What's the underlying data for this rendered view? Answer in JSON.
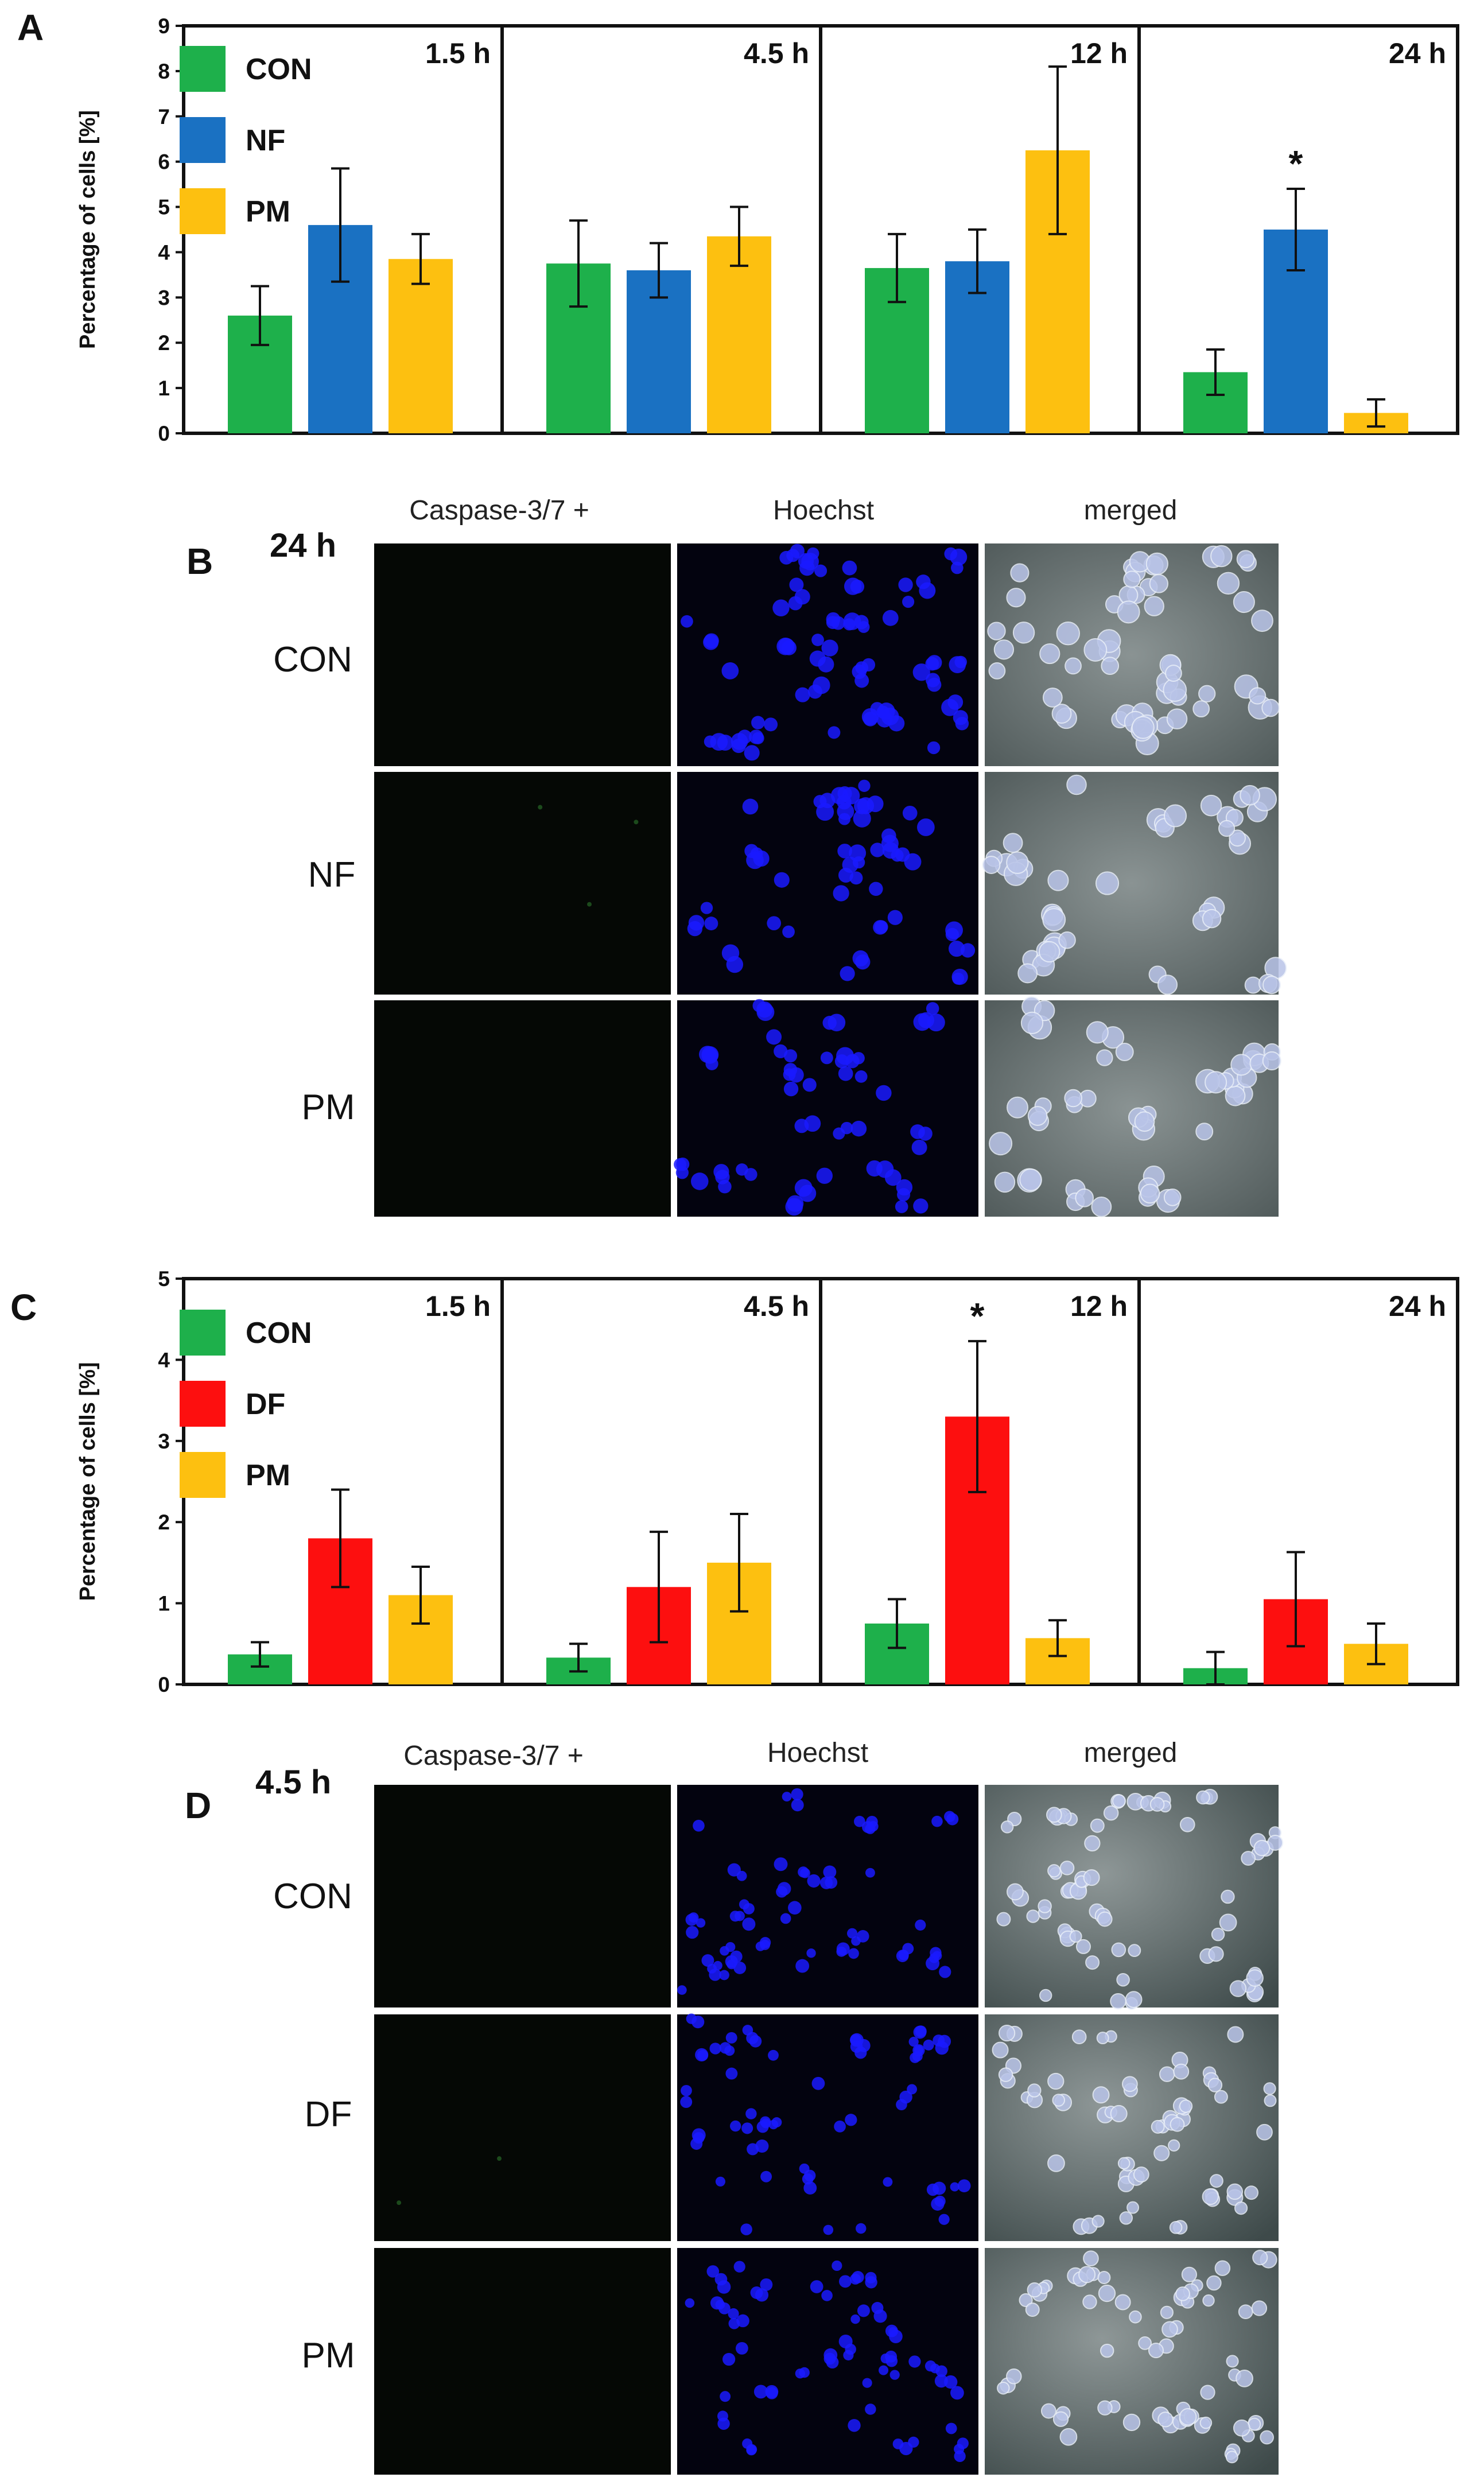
{
  "chart_data": [
    {
      "panel": "A",
      "type": "bar",
      "ylabel": "Percentage of cells [%]",
      "ylim": [
        0,
        9
      ],
      "yticks": [
        "0",
        "1",
        "2",
        "3",
        "4",
        "5",
        "6",
        "7",
        "8",
        "9"
      ],
      "legend": [
        {
          "name": "CON",
          "color": "#1eb04b"
        },
        {
          "name": "NF",
          "color": "#1a71c2"
        },
        {
          "name": "PM",
          "color": "#fdc010"
        }
      ],
      "timepoints": [
        "1.5 h",
        "4.5 h",
        "12 h",
        "24 h"
      ],
      "series": [
        {
          "name": "CON",
          "color": "#1eb04b",
          "values": [
            2.6,
            3.75,
            3.65,
            1.35
          ],
          "errors": [
            0.65,
            0.95,
            0.75,
            0.5
          ]
        },
        {
          "name": "NF",
          "color": "#1a71c2",
          "values": [
            4.6,
            3.6,
            3.8,
            4.5
          ],
          "errors": [
            1.25,
            0.6,
            0.7,
            0.9
          ]
        },
        {
          "name": "PM",
          "color": "#fdc010",
          "values": [
            3.85,
            4.35,
            6.25,
            0.45
          ],
          "errors": [
            0.55,
            0.65,
            1.85,
            0.3
          ]
        }
      ],
      "significance": [
        {
          "timepoint": "24 h",
          "series": "NF",
          "label": "*"
        }
      ]
    },
    {
      "panel": "C",
      "type": "bar",
      "ylabel": "Percentage of cells [%]",
      "ylim": [
        0,
        5
      ],
      "yticks": [
        "0",
        "1",
        "2",
        "3",
        "4",
        "5"
      ],
      "legend": [
        {
          "name": "CON",
          "color": "#1eb04b"
        },
        {
          "name": "DF",
          "color": "#fd0f0f"
        },
        {
          "name": "PM",
          "color": "#fdc010"
        }
      ],
      "timepoints": [
        "1.5 h",
        "4.5 h",
        "12 h",
        "24 h"
      ],
      "series": [
        {
          "name": "CON",
          "color": "#1eb04b",
          "values": [
            0.37,
            0.33,
            0.75,
            0.2
          ],
          "errors": [
            0.15,
            0.17,
            0.3,
            0.2
          ]
        },
        {
          "name": "DF",
          "color": "#fd0f0f",
          "values": [
            1.8,
            1.2,
            3.3,
            1.05
          ],
          "errors": [
            0.6,
            0.68,
            0.93,
            0.58
          ]
        },
        {
          "name": "PM",
          "color": "#fdc010",
          "values": [
            1.1,
            1.5,
            0.57,
            0.5
          ],
          "errors": [
            0.35,
            0.6,
            0.22,
            0.25
          ]
        }
      ],
      "significance": [
        {
          "timepoint": "12 h",
          "series": "DF",
          "label": "*"
        }
      ]
    }
  ],
  "panel_labels": {
    "a": "A",
    "b": "B",
    "c": "C",
    "d": "D"
  },
  "micrographs": {
    "column_headers": [
      "Caspase-3/7 +",
      "Hoechst",
      "merged"
    ],
    "panel_b": {
      "time": "24 h",
      "rows": [
        "CON",
        "NF",
        "PM"
      ]
    },
    "panel_d": {
      "time": "4.5 h",
      "rows": [
        "CON",
        "DF",
        "PM"
      ]
    }
  },
  "colors": {
    "con": "#1eb04b",
    "nf": "#1a71c2",
    "df": "#fd0f0f",
    "pm": "#fdc010",
    "caspase_bg": "#050805",
    "hoechst_bg": "#03030f",
    "merged_bg": "#6f7a7a"
  }
}
